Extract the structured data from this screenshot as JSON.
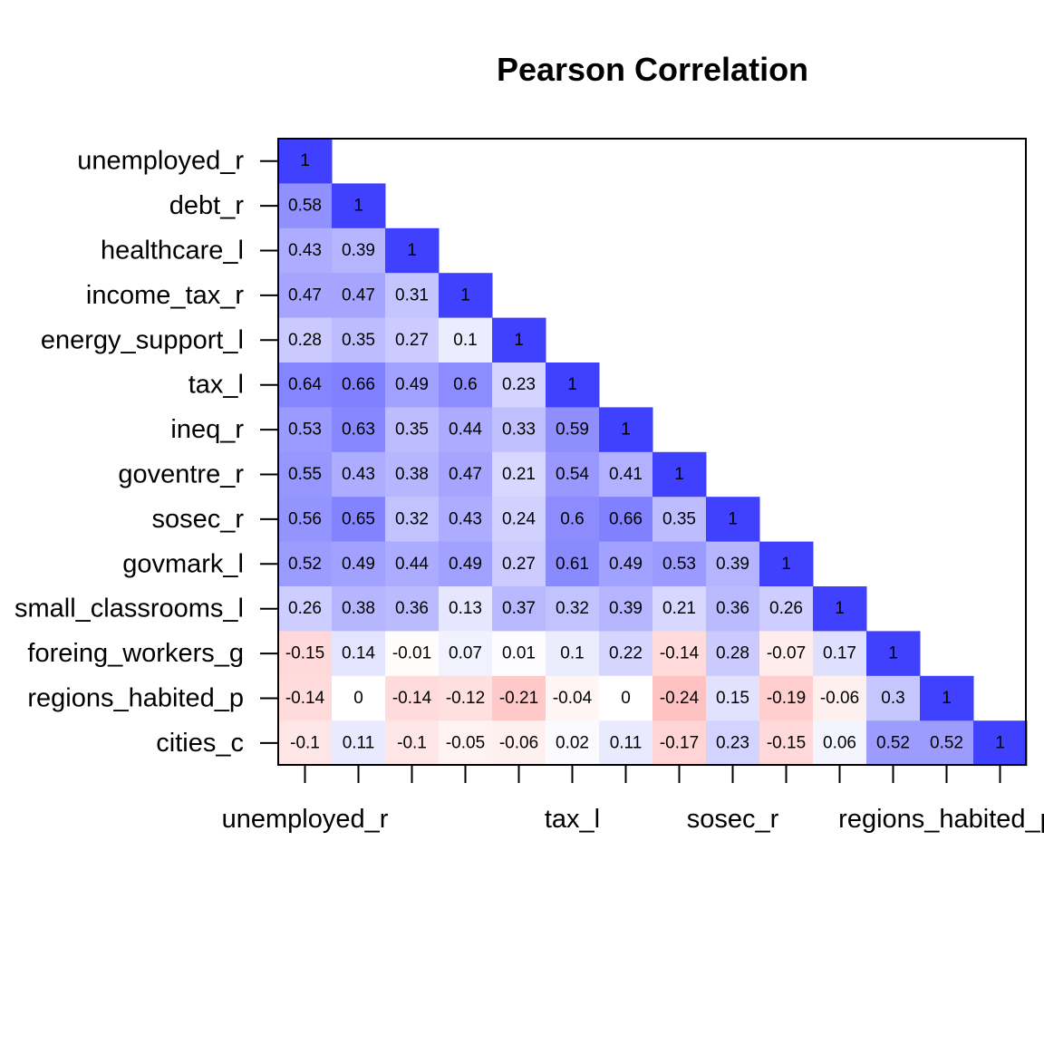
{
  "chart_data": {
    "type": "heatmap",
    "title": "Pearson Correlation",
    "variables": [
      "unemployed_r",
      "debt_r",
      "healthcare_l",
      "income_tax_r",
      "energy_support_l",
      "tax_l",
      "ineq_r",
      "goventre_r",
      "sosec_r",
      "govmark_l",
      "small_classrooms_l",
      "foreing_workers_g",
      "regions_habited_p",
      "cities_c"
    ],
    "x_tick_labels": [
      "unemployed_r",
      "tax_l",
      "sosec_r",
      "regions_habited_p"
    ],
    "lower_triangle": [
      [
        1
      ],
      [
        0.58,
        1
      ],
      [
        0.43,
        0.39,
        1
      ],
      [
        0.47,
        0.47,
        0.31,
        1
      ],
      [
        0.28,
        0.35,
        0.27,
        0.1,
        1
      ],
      [
        0.64,
        0.66,
        0.49,
        0.6,
        0.23,
        1
      ],
      [
        0.53,
        0.63,
        0.35,
        0.44,
        0.33,
        0.59,
        1
      ],
      [
        0.55,
        0.43,
        0.38,
        0.47,
        0.21,
        0.54,
        0.41,
        1
      ],
      [
        0.56,
        0.65,
        0.32,
        0.43,
        0.24,
        0.6,
        0.66,
        0.35,
        1
      ],
      [
        0.52,
        0.49,
        0.44,
        0.49,
        0.27,
        0.61,
        0.49,
        0.53,
        0.39,
        1
      ],
      [
        0.26,
        0.38,
        0.36,
        0.13,
        0.37,
        0.32,
        0.39,
        0.21,
        0.36,
        0.26,
        1
      ],
      [
        -0.15,
        0.14,
        -0.01,
        0.07,
        0.01,
        0.1,
        0.22,
        -0.14,
        0.28,
        -0.07,
        0.17,
        1
      ],
      [
        -0.14,
        0,
        -0.14,
        -0.12,
        -0.21,
        -0.04,
        0,
        -0.24,
        0.15,
        -0.19,
        -0.06,
        0.3,
        1
      ],
      [
        -0.1,
        0.11,
        -0.1,
        -0.05,
        -0.06,
        0.02,
        0.11,
        -0.17,
        0.23,
        -0.15,
        0.06,
        0.52,
        0.52,
        1
      ]
    ],
    "value_range": [
      -1,
      1
    ],
    "colors": {
      "positive": "#4040ff",
      "negative": "#ff0000",
      "neutral": "#ffffff",
      "frame": "#000000"
    },
    "grid": false,
    "legend": "none"
  }
}
